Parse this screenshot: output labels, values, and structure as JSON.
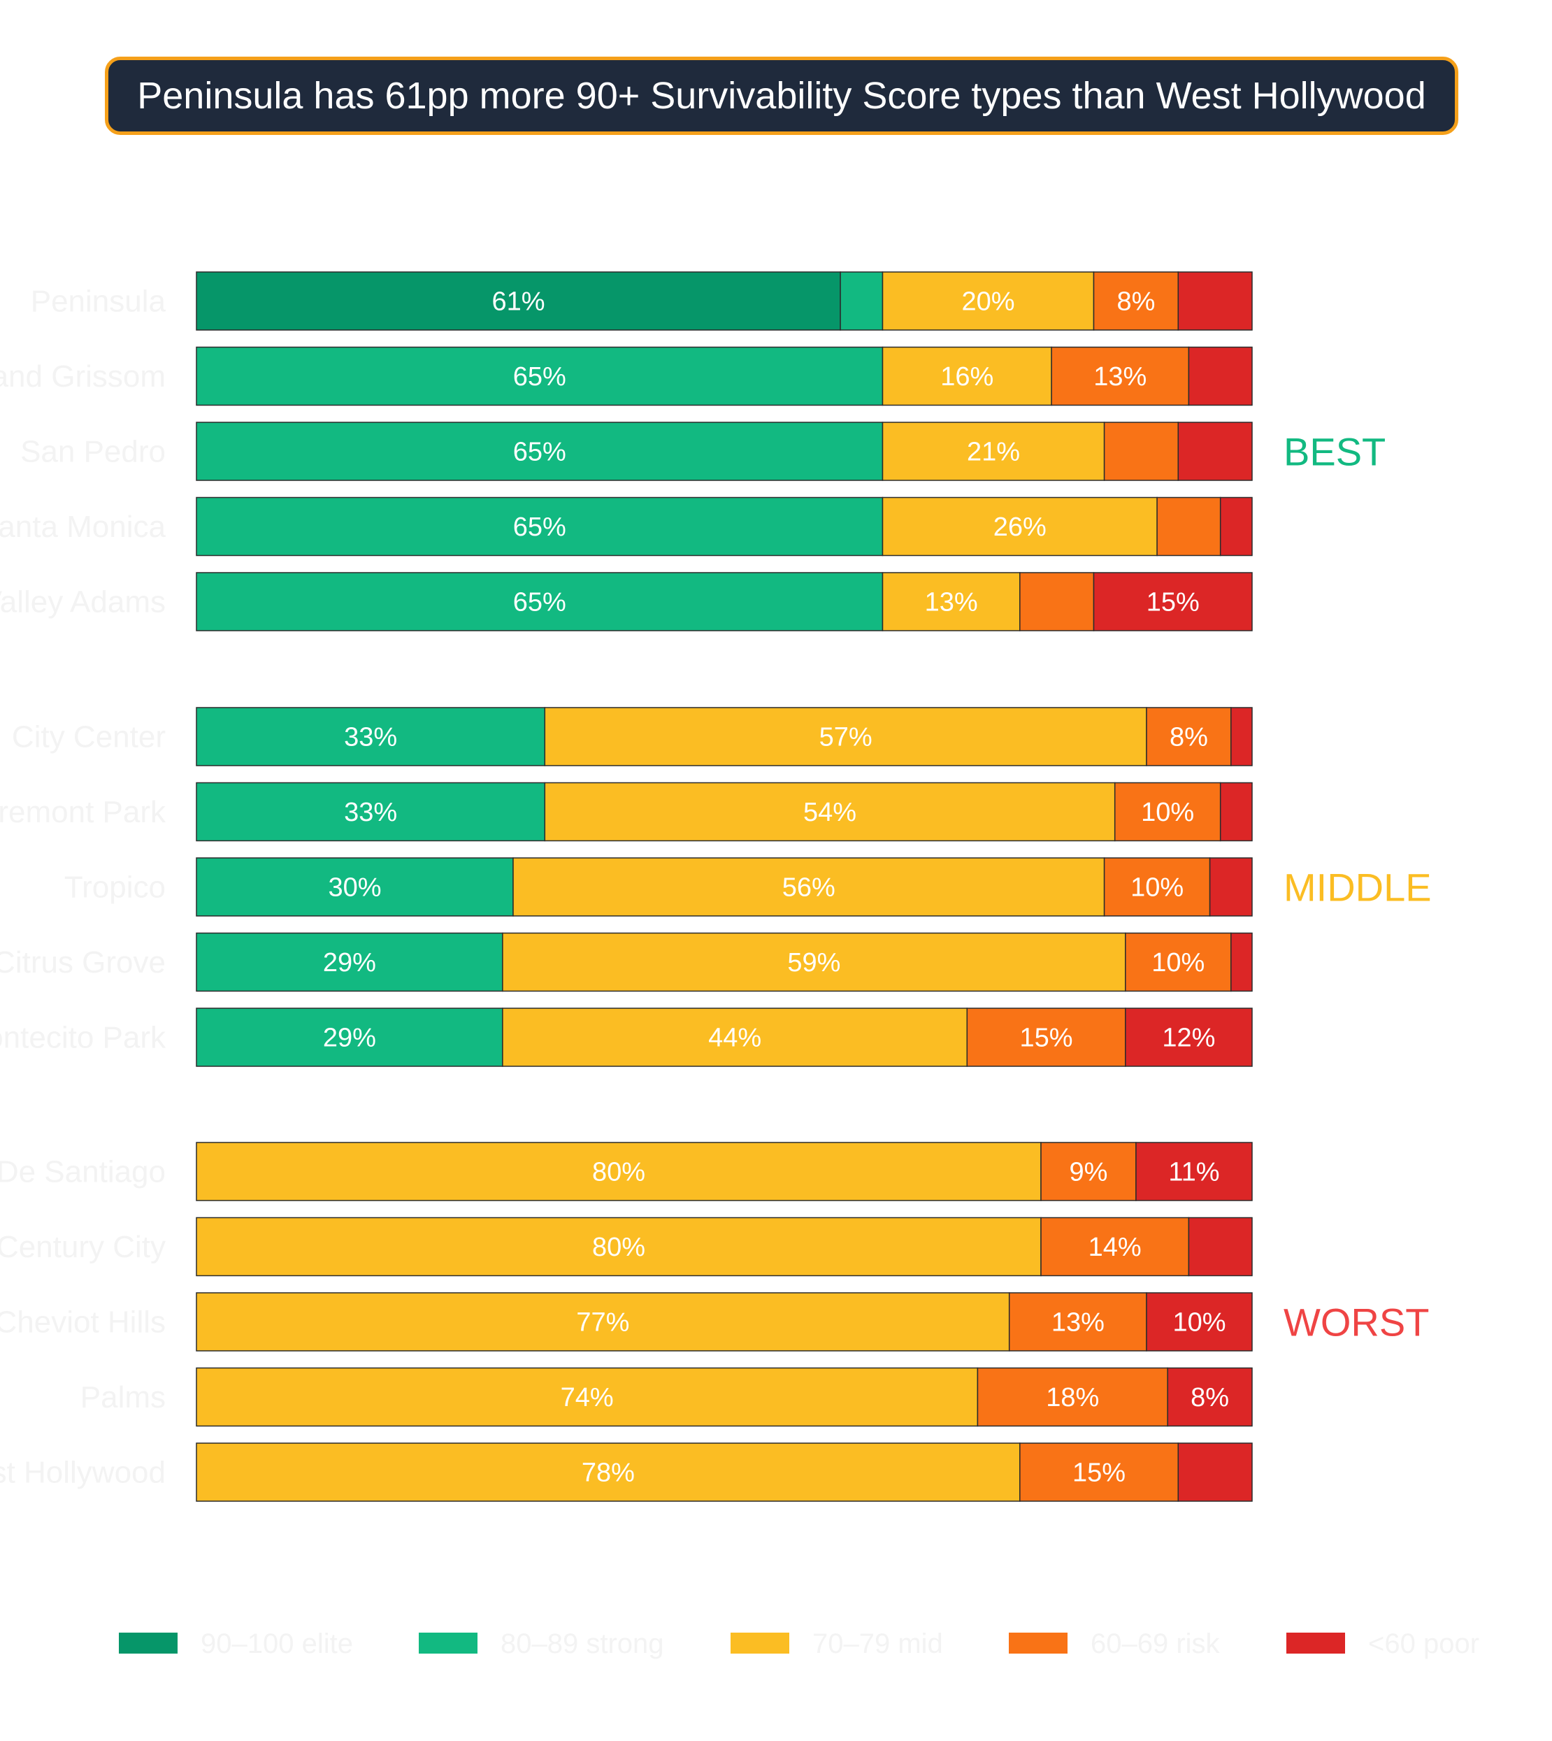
{
  "title": "Peninsula has 61pp more 90+ Survivability Score types than West Hollywood",
  "colors": {
    "elite": "#069669",
    "strong": "#12b981",
    "mid": "#fbbd23",
    "risk": "#f97316",
    "poor": "#dc2626",
    "title_bg": "#1f2a3c",
    "title_border": "#f5a01a",
    "best": "#12b981",
    "middle": "#fbbd23",
    "worst": "#ef4444"
  },
  "chart_data": {
    "type": "bar",
    "orientation": "horizontal",
    "stacked": true,
    "normalized": true,
    "title": "Peninsula has 61pp more 90+ Survivability Score types than West Hollywood",
    "xlim": [
      0,
      100
    ],
    "grid": false,
    "legend_position": "bottom",
    "series_keys": [
      "elite",
      "strong",
      "mid",
      "risk",
      "poor"
    ],
    "legend": [
      "90–100 elite",
      "80–89 strong",
      "70–79 mid",
      "60–69 risk",
      "<60 poor"
    ],
    "groups": [
      {
        "label": "BEST",
        "color_key": "best",
        "rows": [
          {
            "label": "Peninsula",
            "values": [
              61,
              4,
              20,
              8,
              7
            ],
            "labels": [
              "61%",
              "",
              "20%",
              "8%",
              ""
            ]
          },
          {
            "label": "Grand Grissom",
            "values": [
              0,
              65,
              16,
              13,
              6
            ],
            "labels": [
              "",
              "65%",
              "16%",
              "13%",
              ""
            ]
          },
          {
            "label": "San Pedro",
            "values": [
              0,
              65,
              21,
              7,
              7
            ],
            "labels": [
              "",
              "65%",
              "21%",
              "",
              ""
            ]
          },
          {
            "label": "Santa Monica",
            "values": [
              0,
              65,
              26,
              6,
              3
            ],
            "labels": [
              "",
              "65%",
              "26%",
              "",
              ""
            ]
          },
          {
            "label": "Valley Adams",
            "values": [
              0,
              65,
              13,
              7,
              15
            ],
            "labels": [
              "",
              "65%",
              "13%",
              "",
              "15%"
            ]
          }
        ]
      },
      {
        "label": "MIDDLE",
        "color_key": "middle",
        "rows": [
          {
            "label": "City Center",
            "values": [
              0,
              33,
              57,
              8,
              2
            ],
            "labels": [
              "",
              "33%",
              "57%",
              "8%",
              ""
            ]
          },
          {
            "label": "Fremont Park",
            "values": [
              0,
              33,
              54,
              10,
              3
            ],
            "labels": [
              "",
              "33%",
              "54%",
              "10%",
              ""
            ]
          },
          {
            "label": "Tropico",
            "values": [
              0,
              30,
              56,
              10,
              4
            ],
            "labels": [
              "",
              "30%",
              "56%",
              "10%",
              ""
            ]
          },
          {
            "label": "Citrus Grove",
            "values": [
              0,
              29,
              59,
              10,
              2
            ],
            "labels": [
              "",
              "29%",
              "59%",
              "10%",
              ""
            ]
          },
          {
            "label": "Montecito Park",
            "values": [
              0,
              29,
              44,
              15,
              12
            ],
            "labels": [
              "",
              "29%",
              "44%",
              "15%",
              "12%"
            ]
          }
        ]
      },
      {
        "label": "WORST",
        "color_key": "worst",
        "rows": [
          {
            "label": "De Santiago",
            "values": [
              0,
              0,
              80,
              9,
              11
            ],
            "labels": [
              "",
              "",
              "80%",
              "9%",
              "11%"
            ]
          },
          {
            "label": "Century City",
            "values": [
              0,
              0,
              80,
              14,
              6
            ],
            "labels": [
              "",
              "",
              "80%",
              "14%",
              ""
            ]
          },
          {
            "label": "Cheviot Hills",
            "values": [
              0,
              0,
              77,
              13,
              10
            ],
            "labels": [
              "",
              "",
              "77%",
              "13%",
              "10%"
            ]
          },
          {
            "label": "Palms",
            "values": [
              0,
              0,
              74,
              18,
              8
            ],
            "labels": [
              "",
              "",
              "74%",
              "18%",
              "8%"
            ]
          },
          {
            "label": "West Hollywood",
            "values": [
              0,
              0,
              78,
              15,
              7
            ],
            "labels": [
              "",
              "",
              "78%",
              "15%",
              ""
            ]
          }
        ]
      }
    ]
  }
}
